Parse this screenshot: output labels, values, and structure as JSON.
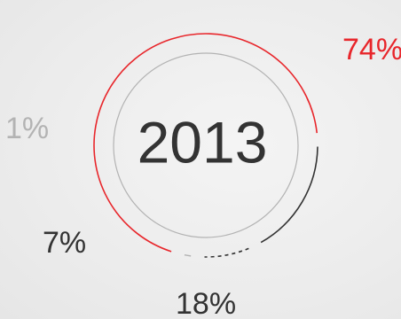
{
  "chart_data": {
    "type": "pie",
    "center_label": "2013",
    "segments": [
      {
        "label": "74%",
        "value": 74,
        "color": "#e8262b",
        "style": "solid"
      },
      {
        "label": "18%",
        "value": 18,
        "color": "#333333",
        "style": "solid"
      },
      {
        "label": "7%",
        "value": 7,
        "color": "#333333",
        "style": "dashed"
      },
      {
        "label": "1%",
        "value": 1,
        "color": "#b3b3b3",
        "style": "solid"
      }
    ],
    "inner_ring_color": "#b3b3b3"
  }
}
